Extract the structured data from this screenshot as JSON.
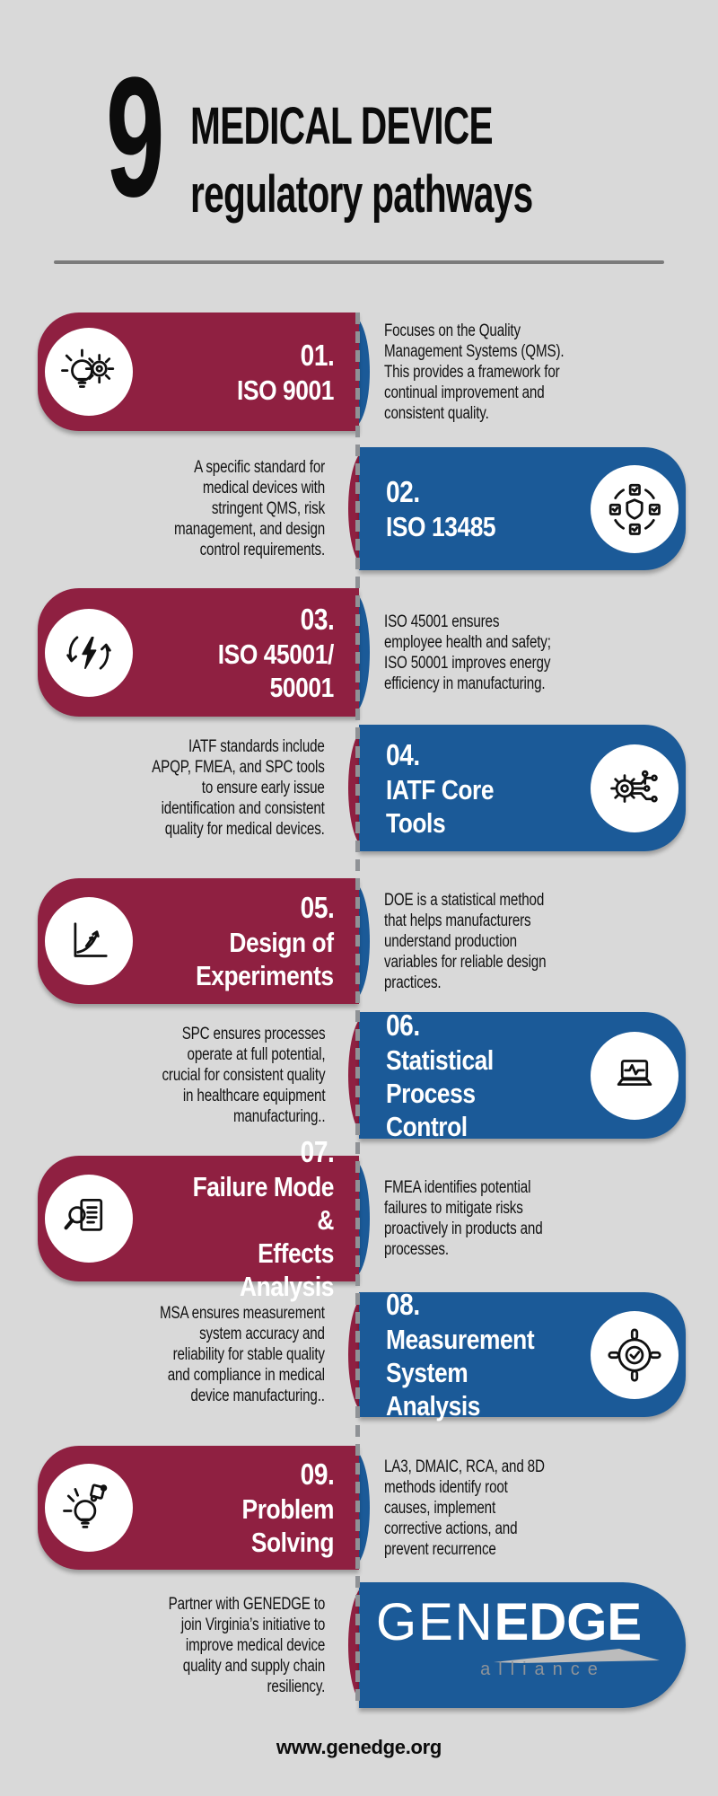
{
  "colors": {
    "background": "#d9d9d9",
    "maroon": "#8f2041",
    "blue": "#1b5a98",
    "divider": "#7b7b7b",
    "dash": "#8f9296",
    "text": "#121212",
    "white": "#ffffff"
  },
  "header": {
    "count": "9",
    "title_line1": "MEDICAL DEVICE",
    "title_line2": "regulatory pathways"
  },
  "items": [
    {
      "number": "01.",
      "name": "ISO 9001",
      "icon": "bulb-gear",
      "side": "left",
      "description": "Focuses on the Quality\nManagement Systems (QMS).\nThis provides a framework for\ncontinual improvement and\nconsistent quality."
    },
    {
      "number": "02.",
      "name": "ISO 13485",
      "icon": "shield-checks",
      "side": "right",
      "description": "A specific standard for\nmedical devices with\nstringent QMS, risk\nmanagement, and design\ncontrol requirements."
    },
    {
      "number": "03.",
      "name": "ISO 45001/\n50001",
      "icon": "energy-refresh",
      "side": "left",
      "description": "ISO 45001 ensures\nemployee health and safety;\nISO 50001 improves energy\nefficiency in manufacturing."
    },
    {
      "number": "04.",
      "name": "IATF Core\nTools",
      "icon": "gear-circuit",
      "side": "right",
      "description": "IATF standards include\nAPQP, FMEA, and SPC tools\nto ensure early issue\nidentification and consistent\nquality for medical devices."
    },
    {
      "number": "05.",
      "name": "Design of\nExperiments",
      "icon": "growth-chart",
      "side": "left",
      "description": "DOE is a statistical method\nthat helps manufacturers\nunderstand production\nvariables for reliable design\npractices."
    },
    {
      "number": "06.",
      "name": "Statistical\nProcess Control",
      "icon": "laptop-wave",
      "side": "right",
      "description": "SPC ensures processes\noperate at full potential,\ncrucial for consistent quality\nin healthcare equipment\nmanufacturing.."
    },
    {
      "number": "07.",
      "name": "Failure Mode &\nEffects Analysis",
      "icon": "doc-magnifier",
      "side": "left",
      "description": "FMEA identifies potential\nfailures to mitigate risks\nproactively in products and\nprocesses."
    },
    {
      "number": "08.",
      "name": "Measurement\nSystem Analysis",
      "icon": "target-check",
      "side": "right",
      "description": "MSA ensures measurement\nsystem accuracy and\nreliability for stable quality\nand compliance in medical\ndevice manufacturing.."
    },
    {
      "number": "09.",
      "name": "Problem Solving",
      "icon": "bulb-puzzle",
      "side": "left",
      "description": "LA3, DMAIC, RCA, and 8D\nmethods identify root\ncauses, implement\ncorrective actions, and\nprevent recurrence"
    }
  ],
  "footer": {
    "partner_text": "Partner with GENEDGE to\njoin Virginia’s initiative to\nimprove medical device\nquality and supply chain\nresiliency.",
    "logo": {
      "gen": "GEN",
      "edge": "EDGE",
      "sub": "alliance"
    },
    "website": "www.genedge.org"
  }
}
